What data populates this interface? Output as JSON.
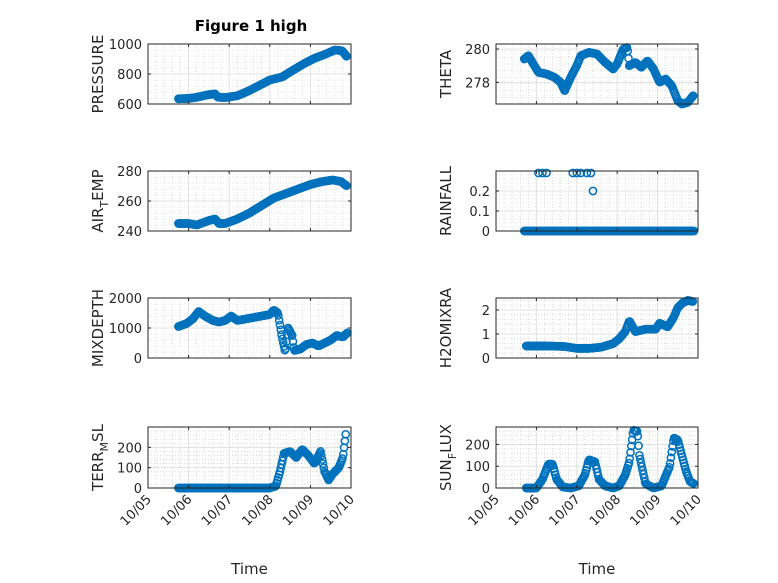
{
  "figure": {
    "title": "Figure 1 high"
  },
  "chart_data": [
    {
      "type": "scatter",
      "title": "Figure 1 high",
      "ylabel": "PRESSURE",
      "xlabel": "",
      "ylim": [
        600,
        1000
      ],
      "yticks": [
        600,
        800,
        1000
      ],
      "yticklabels": [
        "600",
        "800",
        "1000"
      ],
      "xlim": [
        0,
        5
      ],
      "xticks": [
        0,
        1,
        2,
        3,
        4,
        5
      ],
      "xticklabels": [
        "10/05",
        "10/06",
        "10/07",
        "10/08",
        "10/09",
        "10/10"
      ],
      "grid": true,
      "marker": "open-circle",
      "color": "#0072bd",
      "anchors": [
        [
          0.75,
          635
        ],
        [
          1.0,
          637
        ],
        [
          1.2,
          645
        ],
        [
          1.45,
          660
        ],
        [
          1.65,
          668
        ],
        [
          1.72,
          645
        ],
        [
          1.9,
          643
        ],
        [
          2.2,
          655
        ],
        [
          2.5,
          690
        ],
        [
          2.75,
          725
        ],
        [
          3.0,
          760
        ],
        [
          3.3,
          780
        ],
        [
          3.6,
          830
        ],
        [
          3.85,
          870
        ],
        [
          4.1,
          905
        ],
        [
          4.35,
          930
        ],
        [
          4.6,
          960
        ],
        [
          4.78,
          955
        ],
        [
          4.9,
          915
        ]
      ]
    },
    {
      "type": "scatter",
      "title": "",
      "ylabel": "THETA",
      "xlabel": "",
      "ylim": [
        276.7,
        280.3
      ],
      "yticks": [
        278,
        280
      ],
      "yticklabels": [
        "278",
        "280"
      ],
      "xlim": [
        0,
        5
      ],
      "xticks": [
        0,
        1,
        2,
        3,
        4,
        5
      ],
      "xticklabels": [
        "10/05",
        "10/06",
        "10/07",
        "10/08",
        "10/09",
        "10/10"
      ],
      "grid": true,
      "marker": "open-circle",
      "color": "#0072bd",
      "anchors": [
        [
          0.7,
          279.4
        ],
        [
          0.8,
          279.6
        ],
        [
          0.95,
          279.0
        ],
        [
          1.05,
          278.6
        ],
        [
          1.25,
          278.5
        ],
        [
          1.45,
          278.3
        ],
        [
          1.6,
          278.0
        ],
        [
          1.7,
          277.5
        ],
        [
          1.85,
          278.3
        ],
        [
          2.0,
          279.0
        ],
        [
          2.1,
          279.6
        ],
        [
          2.3,
          279.8
        ],
        [
          2.5,
          279.7
        ],
        [
          2.7,
          279.2
        ],
        [
          2.9,
          278.8
        ],
        [
          3.0,
          279.1
        ],
        [
          3.15,
          280.0
        ],
        [
          3.25,
          280.1
        ],
        [
          3.3,
          279.0
        ],
        [
          3.45,
          279.2
        ],
        [
          3.6,
          278.9
        ],
        [
          3.75,
          279.3
        ],
        [
          3.9,
          278.8
        ],
        [
          4.05,
          278.0
        ],
        [
          4.2,
          278.2
        ],
        [
          4.35,
          277.8
        ],
        [
          4.5,
          276.9
        ],
        [
          4.6,
          276.7
        ],
        [
          4.75,
          276.8
        ],
        [
          4.88,
          277.2
        ]
      ]
    },
    {
      "type": "scatter",
      "title": "",
      "ylabel": "AIR_TEMP",
      "xlabel": "",
      "ylim": [
        240,
        280
      ],
      "yticks": [
        240,
        260,
        280
      ],
      "yticklabels": [
        "240",
        "260",
        "280"
      ],
      "xlim": [
        0,
        5
      ],
      "xticks": [
        0,
        1,
        2,
        3,
        4,
        5
      ],
      "xticklabels": [
        "10/05",
        "10/06",
        "10/07",
        "10/08",
        "10/09",
        "10/10"
      ],
      "grid": true,
      "marker": "open-circle",
      "color": "#0072bd",
      "anchors": [
        [
          0.75,
          245
        ],
        [
          1.0,
          245
        ],
        [
          1.2,
          244
        ],
        [
          1.5,
          247
        ],
        [
          1.65,
          248
        ],
        [
          1.75,
          245
        ],
        [
          1.9,
          245
        ],
        [
          2.2,
          248
        ],
        [
          2.5,
          252
        ],
        [
          2.8,
          257
        ],
        [
          3.1,
          262
        ],
        [
          3.4,
          265
        ],
        [
          3.7,
          268
        ],
        [
          4.0,
          271
        ],
        [
          4.3,
          273
        ],
        [
          4.55,
          274
        ],
        [
          4.75,
          273
        ],
        [
          4.9,
          270
        ]
      ]
    },
    {
      "type": "scatter",
      "title": "",
      "ylabel": "RAINFALL",
      "xlabel": "",
      "ylim": [
        0,
        0.3
      ],
      "yticks": [
        0,
        0.1,
        0.2
      ],
      "yticklabels": [
        "0",
        "0.1",
        "0.2"
      ],
      "xlim": [
        0,
        5
      ],
      "xticks": [
        0,
        1,
        2,
        3,
        4,
        5
      ],
      "xticklabels": [
        "10/05",
        "10/06",
        "10/07",
        "10/08",
        "10/09",
        "10/10"
      ],
      "grid": true,
      "marker": "open-circle",
      "color": "#0072bd",
      "anchors": [
        [
          0.7,
          0
        ],
        [
          4.9,
          0
        ]
      ],
      "extra_points": [
        [
          1.05,
          0.29
        ],
        [
          1.15,
          0.29
        ],
        [
          1.25,
          0.29
        ],
        [
          1.9,
          0.29
        ],
        [
          2.0,
          0.29
        ],
        [
          2.1,
          0.29
        ],
        [
          2.25,
          0.29
        ],
        [
          2.35,
          0.29
        ],
        [
          2.4,
          0.2
        ]
      ]
    },
    {
      "type": "scatter",
      "title": "",
      "ylabel": "MIXDEPTH",
      "xlabel": "",
      "ylim": [
        0,
        2000
      ],
      "yticks": [
        0,
        1000,
        2000
      ],
      "yticklabels": [
        "0",
        "1000",
        "2000"
      ],
      "xlim": [
        0,
        5
      ],
      "xticks": [
        0,
        1,
        2,
        3,
        4,
        5
      ],
      "xticklabels": [
        "10/05",
        "10/06",
        "10/07",
        "10/08",
        "10/09",
        "10/10"
      ],
      "grid": true,
      "marker": "open-circle",
      "color": "#0072bd",
      "anchors": [
        [
          0.75,
          1050
        ],
        [
          0.95,
          1150
        ],
        [
          1.1,
          1300
        ],
        [
          1.25,
          1550
        ],
        [
          1.4,
          1400
        ],
        [
          1.6,
          1250
        ],
        [
          1.75,
          1200
        ],
        [
          1.9,
          1250
        ],
        [
          2.05,
          1400
        ],
        [
          2.2,
          1250
        ],
        [
          2.4,
          1300
        ],
        [
          2.6,
          1350
        ],
        [
          2.8,
          1400
        ],
        [
          3.0,
          1450
        ],
        [
          3.1,
          1600
        ],
        [
          3.2,
          1500
        ],
        [
          3.3,
          700
        ],
        [
          3.38,
          200
        ],
        [
          3.45,
          1000
        ],
        [
          3.55,
          750
        ],
        [
          3.6,
          250
        ],
        [
          3.75,
          300
        ],
        [
          3.9,
          450
        ],
        [
          4.05,
          500
        ],
        [
          4.2,
          400
        ],
        [
          4.35,
          500
        ],
        [
          4.5,
          600
        ],
        [
          4.65,
          750
        ],
        [
          4.8,
          700
        ],
        [
          4.92,
          850
        ]
      ]
    },
    {
      "type": "scatter",
      "title": "",
      "ylabel": "H2OMIXRA",
      "xlabel": "",
      "ylim": [
        0,
        2.5
      ],
      "yticks": [
        0,
        1,
        2
      ],
      "yticklabels": [
        "0",
        "1",
        "2"
      ],
      "xlim": [
        0,
        5
      ],
      "xticks": [
        0,
        1,
        2,
        3,
        4,
        5
      ],
      "xticklabels": [
        "10/05",
        "10/06",
        "10/07",
        "10/08",
        "10/09",
        "10/10"
      ],
      "grid": true,
      "marker": "open-circle",
      "color": "#0072bd",
      "anchors": [
        [
          0.75,
          0.5
        ],
        [
          1.3,
          0.5
        ],
        [
          1.7,
          0.48
        ],
        [
          2.0,
          0.4
        ],
        [
          2.3,
          0.4
        ],
        [
          2.6,
          0.45
        ],
        [
          2.9,
          0.6
        ],
        [
          3.05,
          0.8
        ],
        [
          3.2,
          1.1
        ],
        [
          3.3,
          1.55
        ],
        [
          3.45,
          1.1
        ],
        [
          3.7,
          1.2
        ],
        [
          3.95,
          1.2
        ],
        [
          4.05,
          1.45
        ],
        [
          4.25,
          1.3
        ],
        [
          4.4,
          1.7
        ],
        [
          4.5,
          2.1
        ],
        [
          4.62,
          2.3
        ],
        [
          4.75,
          2.4
        ],
        [
          4.88,
          2.35
        ]
      ]
    },
    {
      "type": "scatter",
      "title": "",
      "ylabel": "TERR_MSL",
      "xlabel": "Time",
      "ylim": [
        0,
        300
      ],
      "yticks": [
        0,
        100,
        200
      ],
      "yticklabels": [
        "0",
        "100",
        "200"
      ],
      "xlim": [
        0,
        5
      ],
      "xticks": [
        0,
        1,
        2,
        3,
        4,
        5
      ],
      "xticklabels": [
        "10/05",
        "10/06",
        "10/07",
        "10/08",
        "10/09",
        "10/10"
      ],
      "grid": true,
      "marker": "open-circle",
      "color": "#0072bd",
      "anchors": [
        [
          0.75,
          0
        ],
        [
          3.0,
          0
        ],
        [
          3.15,
          10
        ],
        [
          3.25,
          80
        ],
        [
          3.35,
          170
        ],
        [
          3.5,
          180
        ],
        [
          3.65,
          150
        ],
        [
          3.8,
          190
        ],
        [
          3.95,
          160
        ],
        [
          4.1,
          120
        ],
        [
          4.25,
          180
        ],
        [
          4.35,
          80
        ],
        [
          4.45,
          40
        ],
        [
          4.55,
          70
        ],
        [
          4.7,
          100
        ],
        [
          4.8,
          150
        ],
        [
          4.88,
          280
        ]
      ]
    },
    {
      "type": "scatter",
      "title": "",
      "ylabel": "SUN_FLUX",
      "xlabel": "Time",
      "ylim": [
        0,
        280
      ],
      "yticks": [
        0,
        100,
        200
      ],
      "yticklabels": [
        "0",
        "100",
        "200"
      ],
      "xlim": [
        0,
        5
      ],
      "xticks": [
        0,
        1,
        2,
        3,
        4,
        5
      ],
      "xticklabels": [
        "10/05",
        "10/06",
        "10/07",
        "10/08",
        "10/09",
        "10/10"
      ],
      "grid": true,
      "marker": "open-circle",
      "color": "#0072bd",
      "anchors": [
        [
          0.75,
          0
        ],
        [
          1.0,
          0
        ],
        [
          1.15,
          40
        ],
        [
          1.3,
          110
        ],
        [
          1.4,
          110
        ],
        [
          1.5,
          40
        ],
        [
          1.65,
          5
        ],
        [
          1.85,
          0
        ],
        [
          2.05,
          10
        ],
        [
          2.2,
          60
        ],
        [
          2.3,
          130
        ],
        [
          2.45,
          120
        ],
        [
          2.55,
          40
        ],
        [
          2.7,
          10
        ],
        [
          2.9,
          0
        ],
        [
          3.05,
          10
        ],
        [
          3.2,
          60
        ],
        [
          3.3,
          120
        ],
        [
          3.4,
          265
        ],
        [
          3.5,
          260
        ],
        [
          3.55,
          150
        ],
        [
          3.7,
          20
        ],
        [
          3.9,
          0
        ],
        [
          4.1,
          10
        ],
        [
          4.3,
          100
        ],
        [
          4.4,
          230
        ],
        [
          4.5,
          220
        ],
        [
          4.6,
          150
        ],
        [
          4.7,
          80
        ],
        [
          4.8,
          30
        ],
        [
          4.9,
          20
        ]
      ]
    }
  ]
}
